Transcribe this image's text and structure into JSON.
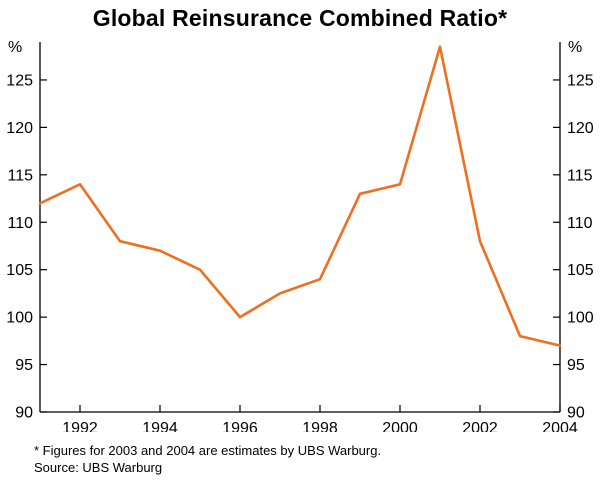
{
  "title": "Global Reinsurance Combined Ratio*",
  "axis": {
    "left_unit": "%",
    "right_unit": "%"
  },
  "footnotes": {
    "asterisk": "* Figures for 2003 and 2004 are estimates by UBS Warburg.",
    "source": "Source: UBS Warburg"
  },
  "colors": {
    "line": "#EE6F1F",
    "axis": "#000000"
  },
  "chart_data": {
    "type": "line",
    "title": "Global Reinsurance Combined Ratio*",
    "xlabel": "",
    "ylabel": "%",
    "x": [
      1991,
      1992,
      1993,
      1994,
      1995,
      1996,
      1997,
      1998,
      1999,
      2000,
      2001,
      2002,
      2003,
      2004
    ],
    "values": [
      112,
      114,
      108,
      107,
      105,
      100,
      102.5,
      104,
      113,
      114,
      128.5,
      108,
      98,
      97
    ],
    "series_name": "Global reinsurance combined ratio",
    "xlim": [
      1991,
      2004
    ],
    "ylim": [
      90,
      129
    ],
    "yticks": [
      90,
      95,
      100,
      105,
      110,
      115,
      120,
      125
    ],
    "xticks": [
      1992,
      1994,
      1996,
      1998,
      2000,
      2002,
      2004
    ],
    "grid": false,
    "legend": "none"
  }
}
